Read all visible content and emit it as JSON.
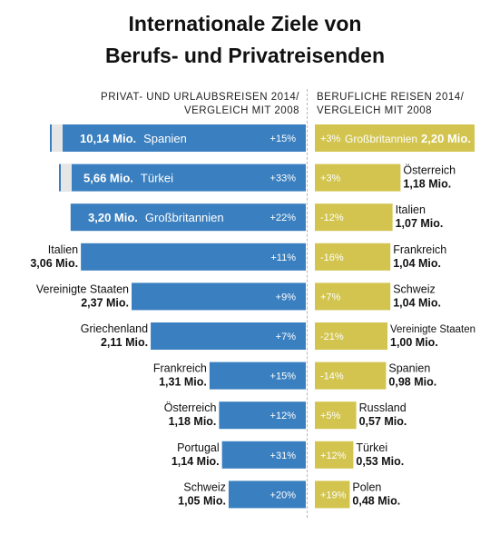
{
  "title_line1": "Internationale Ziele von",
  "title_line2": "Berufs- und Privatreisenden",
  "left_header_line1": "PRIVAT- UND URLAUBSREISEN 2014/",
  "left_header_line2": "VERGLEICH MIT 2008",
  "right_header_line1": "BERUFLICHE REISEN 2014/",
  "right_header_line2": "VERGLEICH MIT 2008",
  "colors": {
    "private": "#3a7fbf",
    "business": "#d2c44e",
    "break": "#e6e6e6"
  },
  "chart_data": [
    {
      "type": "bar",
      "orientation": "horizontal",
      "group": "PRIVAT- UND URLAUBSREISEN 2014/ VERGLEICH MIT 2008",
      "unit": "Mio.",
      "axis_break_on_top_two": true,
      "categories": [
        "Spanien",
        "Türkei",
        "Großbritannien",
        "Italien",
        "Vereinigte Staaten",
        "Griechenland",
        "Frankreich",
        "Österreich",
        "Portugal",
        "Schweiz"
      ],
      "value_labels": [
        "10,14 Mio.",
        "5,66 Mio.",
        "3,20 Mio.",
        "3,06 Mio.",
        "2,37 Mio.",
        "2,11 Mio.",
        "1,31 Mio.",
        "1,18 Mio.",
        "1,14 Mio.",
        "1,05 Mio."
      ],
      "values": [
        10.14,
        5.66,
        3.2,
        3.06,
        2.37,
        2.11,
        1.31,
        1.18,
        1.14,
        1.05
      ],
      "change_vs_2008": [
        "+15%",
        "+33%",
        "+22%",
        "+11%",
        "+9%",
        "+7%",
        "+15%",
        "+12%",
        "+31%",
        "+20%"
      ]
    },
    {
      "type": "bar",
      "orientation": "horizontal",
      "group": "BERUFLICHE REISEN 2014/ VERGLEICH MIT 2008",
      "unit": "Mio.",
      "categories": [
        "Großbritannien",
        "Österreich",
        "Italien",
        "Frankreich",
        "Schweiz",
        "Vereinigte Staaten",
        "Spanien",
        "Russland",
        "Türkei",
        "Polen"
      ],
      "value_labels": [
        "2,20 Mio.",
        "1,18 Mio.",
        "1,07 Mio.",
        "1,04 Mio.",
        "1,04 Mio.",
        "1,00 Mio.",
        "0,98 Mio.",
        "0,57 Mio.",
        "0,53 Mio.",
        "0,48 Mio."
      ],
      "values": [
        2.2,
        1.18,
        1.07,
        1.04,
        1.04,
        1.0,
        0.98,
        0.57,
        0.53,
        0.48
      ],
      "change_vs_2008": [
        "+3%",
        "+3%",
        "-12%",
        "-16%",
        "+7%",
        "-21%",
        "-14%",
        "+5%",
        "+12%",
        "+19%"
      ]
    }
  ]
}
